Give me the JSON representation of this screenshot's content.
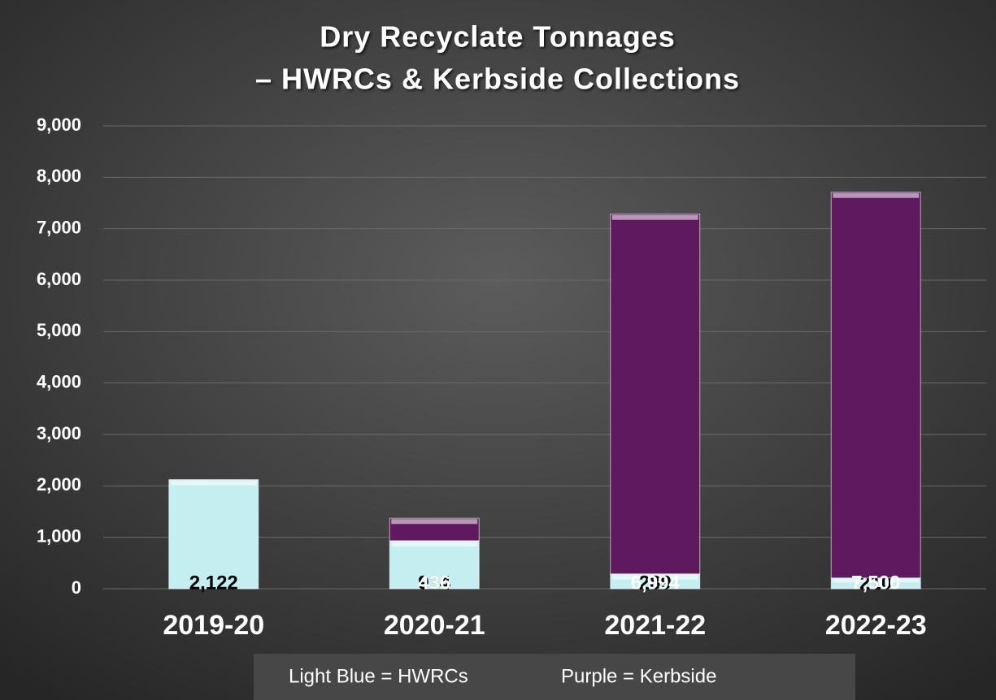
{
  "chart_data": {
    "type": "bar",
    "stacked": true,
    "title": [
      "Dry Recyclate Tonnages",
      "– HWRCs & Kerbside Collections"
    ],
    "categories": [
      "2019-20",
      "2020-21",
      "2021-22",
      "2022-23"
    ],
    "series": [
      {
        "name": "Light Blue = HWRCs",
        "color": "#c4eef0",
        "label_color": "#000000",
        "values": [
          2122,
          934,
          289,
          210
        ],
        "value_labels": [
          "2,122",
          "934",
          "289",
          "210"
        ]
      },
      {
        "name": "Purple = Kerbside",
        "color": "#5f1a5f",
        "label_color": "#ffffff",
        "values": [
          null,
          436,
          6994,
          7500
        ],
        "value_labels": [
          null,
          "436",
          "6,994",
          "7,500"
        ]
      }
    ],
    "ylim": [
      0,
      9000
    ],
    "yticks": [
      0,
      {
        "value": 1000,
        "label": "1,000"
      },
      {
        "value": 2000,
        "label": "2,000"
      },
      {
        "value": 3000,
        "label": "3,000"
      },
      {
        "value": 4000,
        "label": "4,000"
      },
      {
        "value": 5000,
        "label": "5,000"
      },
      {
        "value": 6000,
        "label": "6,000"
      },
      {
        "value": 7000,
        "label": "7,000"
      },
      {
        "value": 8000,
        "label": "8,000"
      },
      {
        "value": 9000,
        "label": "9,000"
      }
    ],
    "grid": true,
    "legend": "bottom"
  }
}
